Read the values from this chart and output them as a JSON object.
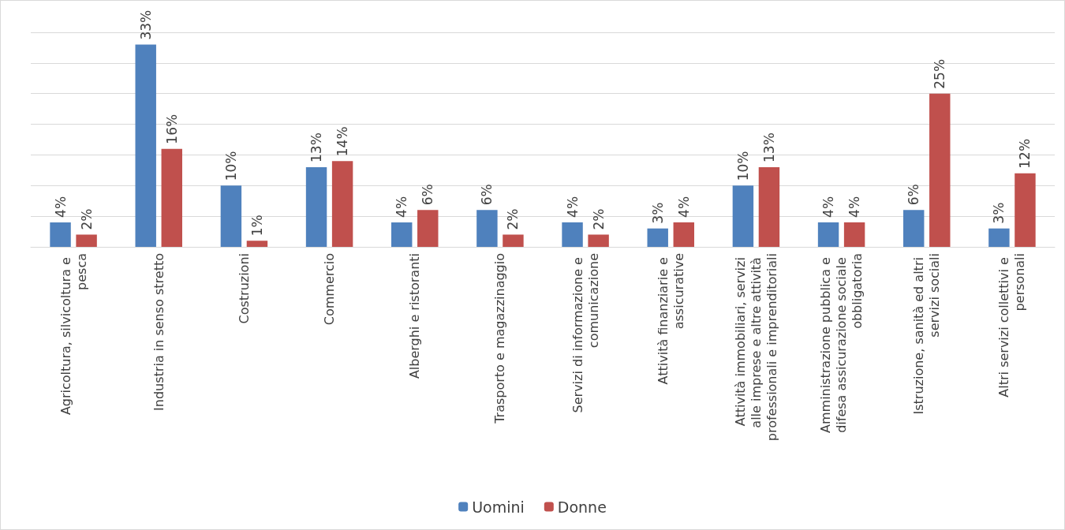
{
  "chart_data": {
    "type": "bar",
    "categories": [
      "Agricoltura, silvicoltura e pesca",
      "Industria in senso stretto",
      "Costruzioni",
      "Commercio",
      "Alberghi e ristoranti",
      "Trasporto e magazzinaggio",
      "Servizi di informazione e comunicazione",
      "Attività finanziarie e assicurative",
      "Attività immobiliari, servizi alle imprese e altre attività professionali e imprenditoriali",
      "Amministrazione pubblica e difesa assicurazione sociale obbligatoria",
      "Istruzione, sanità ed altri servizi sociali",
      "Altri servizi collettivi e personali"
    ],
    "series": [
      {
        "name": "Uomini",
        "color": "#4f81bd",
        "values": [
          4,
          33,
          10,
          13,
          4,
          6,
          4,
          3,
          10,
          4,
          6,
          3
        ],
        "value_labels": [
          "4%",
          "33%",
          "10%",
          "13%",
          "4%",
          "6%",
          "4%",
          "3%",
          "10%",
          "4%",
          "6%",
          "3%"
        ]
      },
      {
        "name": "Donne",
        "color": "#c0504d",
        "values": [
          2,
          16,
          1,
          14,
          6,
          2,
          2,
          4,
          13,
          4,
          25,
          12
        ],
        "value_labels": [
          "2%",
          "16%",
          "1%",
          "14%",
          "6%",
          "2%",
          "2%",
          "4%",
          "13%",
          "4%",
          "25%",
          "12%"
        ]
      }
    ],
    "ylim": [
      0,
      35
    ],
    "yticks": [
      {
        "value": 0,
        "label": null
      },
      {
        "value": 5,
        "label": null
      },
      {
        "value": 10,
        "label": null
      },
      {
        "value": 15,
        "label": null
      },
      {
        "value": 20,
        "label": null
      },
      {
        "value": 25,
        "label": null
      },
      {
        "value": 30,
        "label": null
      },
      {
        "value": 35,
        "label": null
      }
    ],
    "grid": "y",
    "legend": "bottom",
    "tick_labels": "x"
  }
}
